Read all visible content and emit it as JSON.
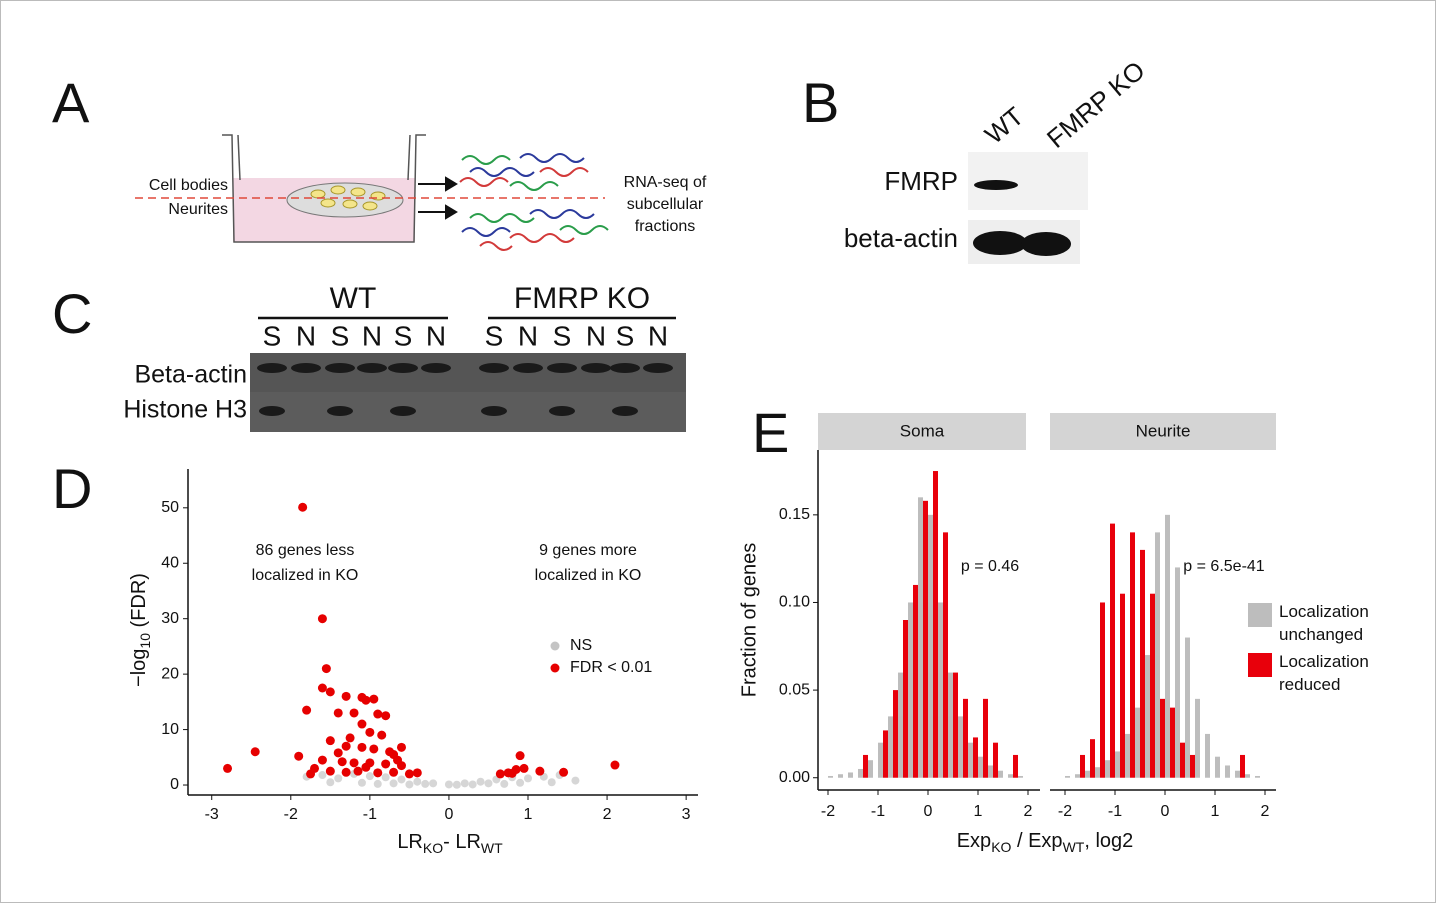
{
  "panels": {
    "labels": [
      "A",
      "B",
      "C",
      "D",
      "E"
    ],
    "a": {
      "left_labels": [
        "Cell bodies",
        "Neurites"
      ],
      "right_text": [
        "RNA-seq of",
        "subcellular",
        "fractions"
      ]
    },
    "b": {
      "lanes": [
        "WT",
        "FMRP KO"
      ],
      "rows": [
        "FMRP",
        "beta-actin"
      ]
    },
    "c": {
      "groups": [
        "WT",
        "FMRP KO"
      ],
      "lanes": [
        "S",
        "N",
        "S",
        "N",
        "S",
        "N",
        "S",
        "N",
        "S",
        "N",
        "S",
        "N"
      ],
      "rows": [
        "Beta-actin",
        "Histone H3"
      ]
    }
  },
  "chart_data": [
    {
      "type": "scatter",
      "xlabel": [
        "LR",
        "KO",
        "- LR",
        "WT"
      ],
      "ylabel": [
        "−log",
        "10",
        " (FDR)"
      ],
      "xlim": [
        -3.3,
        3.15
      ],
      "ylim": [
        -1.8,
        57
      ],
      "xticks": [
        -3,
        -2,
        -1,
        0,
        1,
        2,
        3
      ],
      "yticks": [
        0,
        10,
        20,
        30,
        40,
        50
      ],
      "annotations": [
        [
          "86 genes less",
          "localized in KO"
        ],
        [
          "9 genes more",
          "localized in KO"
        ]
      ],
      "series": [
        {
          "name": "NS",
          "color": "#c4c4c4",
          "x": [
            -1.8,
            -1.6,
            -1.4,
            -1.2,
            -1.0,
            -0.8,
            -0.6,
            -0.4,
            -0.2,
            0,
            0.2,
            0.4,
            0.6,
            0.8,
            1.0,
            1.2,
            1.4,
            1.6,
            -1.5,
            -1.1,
            -0.7,
            -0.3,
            0.1,
            0.5,
            0.9,
            1.3,
            -0.9,
            -0.5,
            0.3,
            0.7
          ],
          "values": [
            1.5,
            1.8,
            1.2,
            2.0,
            1.6,
            1.4,
            1.0,
            0.6,
            0.3,
            0.1,
            0.3,
            0.6,
            1.0,
            1.4,
            1.2,
            1.5,
            1.8,
            0.8,
            0.5,
            0.4,
            0.3,
            0.2,
            0.05,
            0.3,
            0.4,
            0.5,
            0.2,
            0.1,
            0.1,
            0.2
          ]
        },
        {
          "name": "FDR < 0.01",
          "color": "#e60000",
          "x": [
            -1.85,
            -1.6,
            -1.55,
            -1.6,
            -1.5,
            -1.8,
            -1.3,
            -1.1,
            -1.05,
            -0.95,
            -1.2,
            -1.4,
            -0.9,
            -0.8,
            -1.1,
            -1.0,
            -0.85,
            -1.25,
            -1.5,
            -1.3,
            -1.1,
            -0.95,
            -0.75,
            -1.4,
            -0.7,
            -1.6,
            -1.35,
            -1.2,
            -1.0,
            -0.8,
            -0.6,
            -1.9,
            -1.7,
            -1.5,
            -1.3,
            -1.15,
            -0.9,
            -0.7,
            -0.5,
            -0.4,
            -2.8,
            -2.45,
            -1.75,
            -1.05,
            -0.6,
            -0.65,
            0.65,
            0.75,
            0.85,
            0.9,
            0.95,
            1.15,
            1.45,
            2.1,
            0.8
          ],
          "values": [
            50.1,
            30,
            21,
            17.5,
            16.8,
            13.5,
            16,
            15.8,
            15.3,
            15.5,
            13,
            13,
            12.8,
            12.5,
            11,
            9.5,
            9,
            8.5,
            8,
            7,
            6.8,
            6.5,
            6,
            5.8,
            5.5,
            4.5,
            4.2,
            4,
            4,
            3.8,
            3.5,
            5.2,
            3,
            2.5,
            2.3,
            2.5,
            2.2,
            2.3,
            2,
            2.2,
            3,
            6,
            2,
            3.2,
            6.8,
            4.5,
            2,
            2.2,
            2.8,
            5.3,
            3,
            2.5,
            2.3,
            3.6,
            2.1
          ]
        }
      ]
    },
    {
      "type": "bar",
      "title": "Soma",
      "ylabel": "Fraction of genes",
      "xlabel": [
        "Exp",
        "KO",
        " / Exp",
        "WT",
        ", log2"
      ],
      "annotation": "p = 0.46",
      "xlim": [
        -2.2,
        2.24
      ],
      "ylim": [
        -0.007,
        0.187
      ],
      "xticks": [
        -2,
        -1,
        0,
        1,
        2
      ],
      "yticks": [
        {
          "value": 0,
          "label": "0.00"
        },
        {
          "value": 0.05,
          "label": "0.05"
        },
        {
          "value": 0.1,
          "label": "0.10"
        },
        {
          "value": 0.15,
          "label": "0.15"
        }
      ],
      "x": [
        -1.9,
        -1.7,
        -1.5,
        -1.3,
        -1.1,
        -0.9,
        -0.7,
        -0.5,
        -0.3,
        -0.1,
        0.1,
        0.3,
        0.5,
        0.7,
        0.9,
        1.1,
        1.3,
        1.5,
        1.7,
        1.9
      ],
      "series": [
        {
          "color": "#bdbdbd",
          "values": [
            0.001,
            0.002,
            0.003,
            0.005,
            0.01,
            0.02,
            0.035,
            0.06,
            0.1,
            0.16,
            0.15,
            0.1,
            0.06,
            0.035,
            0.02,
            0.012,
            0.007,
            0.004,
            0.002,
            0.001
          ]
        },
        {
          "color": "#e8000b",
          "values": [
            0,
            0,
            0,
            0.013,
            0,
            0.027,
            0.05,
            0.09,
            0.11,
            0.158,
            0.175,
            0.14,
            0.06,
            0.045,
            0.023,
            0.045,
            0.02,
            0,
            0.013,
            0
          ]
        }
      ]
    },
    {
      "type": "bar",
      "title": "Neurite",
      "annotation": "p = 6.5e-41",
      "xlim": [
        -2.3,
        2.22
      ],
      "ylim": [
        -0.007,
        0.187
      ],
      "xticks": [
        -2,
        -1,
        0,
        1,
        2
      ],
      "x": [
        -1.9,
        -1.7,
        -1.5,
        -1.3,
        -1.1,
        -0.9,
        -0.7,
        -0.5,
        -0.3,
        -0.1,
        0.1,
        0.3,
        0.5,
        0.7,
        0.9,
        1.1,
        1.3,
        1.5,
        1.7,
        1.9
      ],
      "series": [
        {
          "name": "Localization unchanged",
          "color": "#bdbdbd",
          "values": [
            0.001,
            0.002,
            0.004,
            0.006,
            0.01,
            0.015,
            0.025,
            0.04,
            0.07,
            0.14,
            0.15,
            0.12,
            0.08,
            0.045,
            0.025,
            0.012,
            0.007,
            0.004,
            0.002,
            0.001
          ]
        },
        {
          "name": "Localization reduced",
          "color": "#e8000b",
          "values": [
            0,
            0.013,
            0.022,
            0.1,
            0.145,
            0.105,
            0.14,
            0.13,
            0.105,
            0.045,
            0.04,
            0.02,
            0.013,
            0,
            0,
            0,
            0,
            0.013,
            0,
            0
          ]
        }
      ]
    }
  ]
}
